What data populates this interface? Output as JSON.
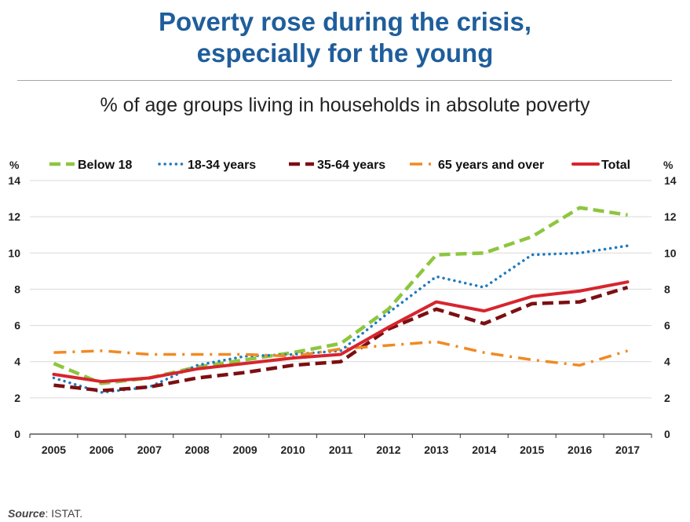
{
  "header": {
    "title_line1": "Poverty rose during the crisis,",
    "title_line2": "especially for the young",
    "subtitle": "% of age groups living in households in absolute poverty"
  },
  "footer": {
    "source_label": "Source",
    "source_text": ": ISTAT."
  },
  "chart_data": {
    "type": "line",
    "title": "",
    "xlabel": "",
    "ylabel": "%",
    "ylabel_right": "%",
    "x": [
      "2005",
      "2006",
      "2007",
      "2008",
      "2009",
      "2010",
      "2011",
      "2012",
      "2013",
      "2014",
      "2015",
      "2016",
      "2017"
    ],
    "ylim": [
      0,
      14
    ],
    "yticks": [
      0,
      2,
      4,
      6,
      8,
      10,
      12,
      14
    ],
    "grid": true,
    "legend_position": "top",
    "series": [
      {
        "name": "Below 18",
        "color": "#8dc63f",
        "style": "dashed",
        "values": [
          3.9,
          2.8,
          3.1,
          3.7,
          4.1,
          4.5,
          5.0,
          6.9,
          9.9,
          10.0,
          10.9,
          12.5,
          12.1
        ]
      },
      {
        "name": "18-34 years",
        "color": "#1f7ac0",
        "style": "dotted",
        "values": [
          3.1,
          2.3,
          2.6,
          3.8,
          4.3,
          4.4,
          4.6,
          6.7,
          8.7,
          8.1,
          9.9,
          10.0,
          10.4
        ]
      },
      {
        "name": "35-64 years",
        "color": "#7b0f12",
        "style": "dashed",
        "values": [
          2.7,
          2.4,
          2.6,
          3.1,
          3.4,
          3.8,
          4.0,
          5.8,
          6.9,
          6.1,
          7.2,
          7.3,
          8.1
        ]
      },
      {
        "name": "65 years and over",
        "color": "#f08a24",
        "style": "dashdot",
        "values": [
          4.5,
          4.6,
          4.4,
          4.4,
          4.4,
          4.3,
          4.7,
          4.9,
          5.1,
          4.5,
          4.1,
          3.8,
          4.6
        ]
      },
      {
        "name": "Total",
        "color": "#d7252e",
        "style": "solid",
        "values": [
          3.3,
          2.9,
          3.1,
          3.6,
          3.9,
          4.2,
          4.4,
          5.9,
          7.3,
          6.8,
          7.6,
          7.9,
          8.4
        ]
      }
    ]
  }
}
